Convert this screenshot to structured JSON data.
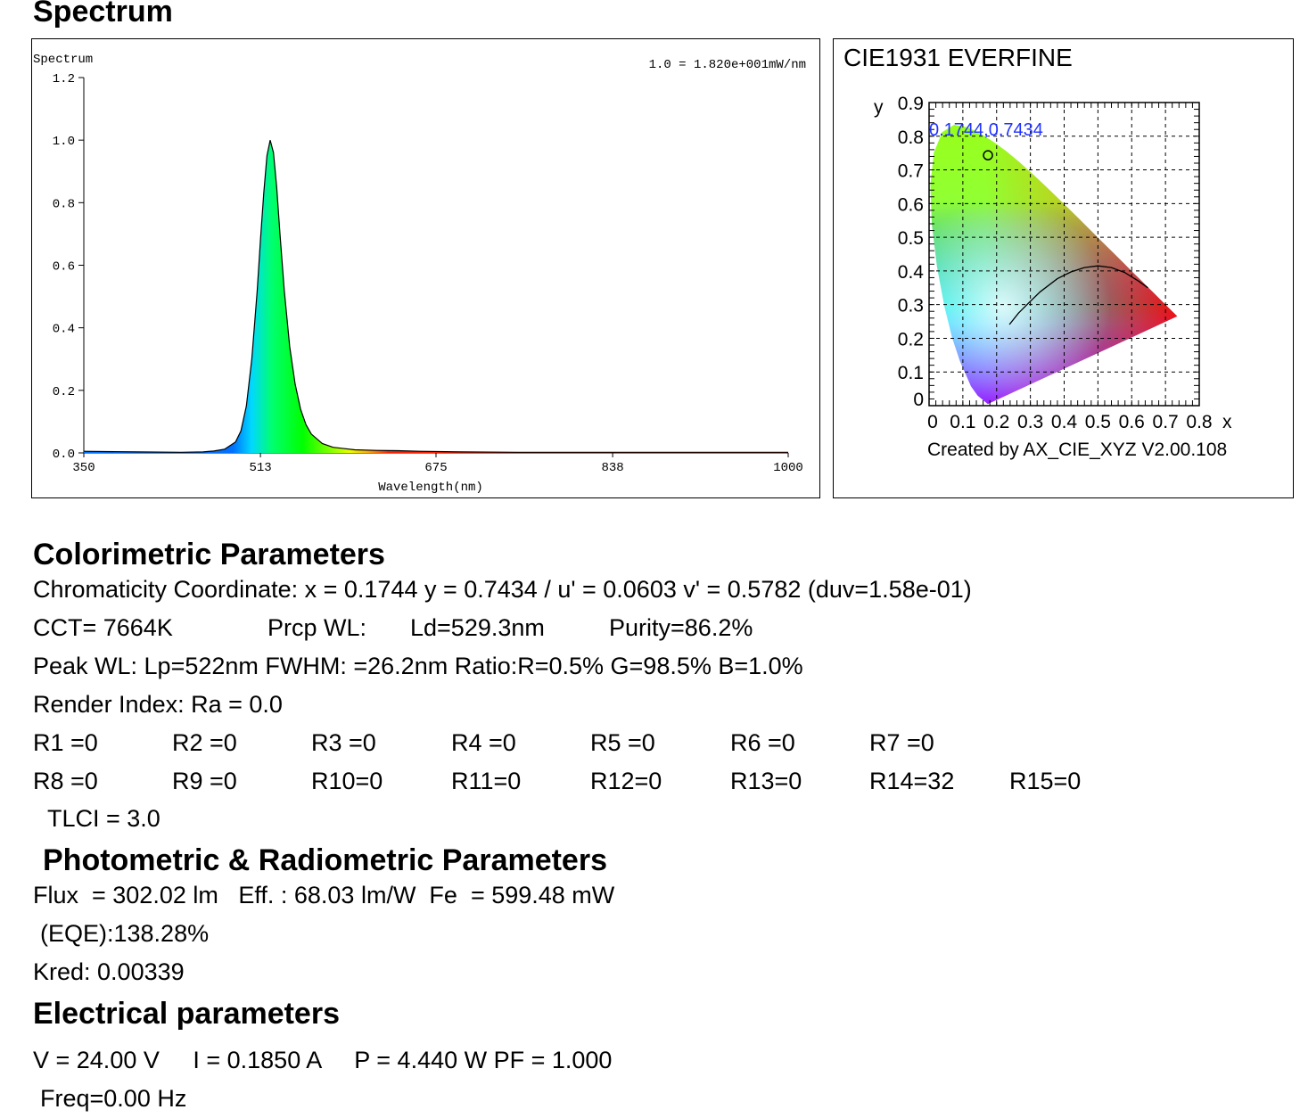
{
  "page_title": "Spectrum",
  "chart_data": [
    {
      "type": "line",
      "chart_label": "Spectrum",
      "scale_note": "1.0 = 1.820e+001mW/nm",
      "xlabel": "Wavelength(nm)",
      "ylabel": "",
      "x_ticks": [
        "350",
        "513",
        "675",
        "838",
        "1000"
      ],
      "y_ticks": [
        "0.0",
        "0.2",
        "0.4",
        "0.6",
        "0.8",
        "1.0",
        "1.2"
      ],
      "xlim": [
        350,
        1000
      ],
      "ylim": [
        0,
        1.2
      ],
      "x": [
        350,
        400,
        440,
        460,
        470,
        480,
        490,
        495,
        500,
        505,
        510,
        513,
        516,
        519,
        522,
        525,
        528,
        531,
        535,
        540,
        545,
        550,
        555,
        560,
        570,
        580,
        600,
        620,
        640,
        660,
        700,
        750,
        800,
        900,
        1000
      ],
      "series": [
        {
          "values": [
            0.005,
            0.003,
            0.002,
            0.003,
            0.006,
            0.012,
            0.035,
            0.07,
            0.15,
            0.3,
            0.52,
            0.68,
            0.83,
            0.95,
            1.0,
            0.96,
            0.85,
            0.7,
            0.52,
            0.34,
            0.22,
            0.14,
            0.09,
            0.06,
            0.03,
            0.018,
            0.01,
            0.008,
            0.007,
            0.005,
            0.003,
            0.002,
            0.002,
            0.002,
            0.002
          ]
        }
      ],
      "grid": false,
      "legend": "none"
    },
    {
      "type": "scatter",
      "chart_label": "CIE1931  EVERFINE",
      "x_axis_label": "x",
      "y_axis_label": "y",
      "x_ticks": [
        "0",
        "0.1",
        "0.2",
        "0.3",
        "0.4",
        "0.5",
        "0.6",
        "0.7",
        "0.8"
      ],
      "y_ticks": [
        "0",
        "0.1",
        "0.2",
        "0.3",
        "0.4",
        "0.5",
        "0.6",
        "0.7",
        "0.8",
        "0.9"
      ],
      "xlim": [
        0,
        0.8
      ],
      "ylim": [
        0,
        0.9
      ],
      "point": {
        "x": 0.1744,
        "y": 0.7434,
        "label": "0.1744,0.7434"
      },
      "grid": true,
      "footer": "Created by AX_CIE_XYZ V2.00.108"
    }
  ],
  "colorimetric": {
    "heading": "Colorimetric Parameters",
    "chromaticity": "Chromaticity Coordinate: x = 0.1744 y = 0.7434 / u' = 0.0603 v' = 0.5782 (duv=1.58e-01)",
    "cct": "CCT=  7664K",
    "prcp_wl": "Prcp WL:",
    "ld": "Ld=529.3nm",
    "purity": "Purity=86.2%",
    "peak_wl": "Peak WL:  Lp=522nm  FWHM:   =26.2nm  Ratio:R=0.5% G=98.5% B=1.0%",
    "render_index": "Render Index: Ra = 0.0",
    "r_row1": [
      "R1 =0",
      "R2 =0",
      "R3 =0",
      "R4 =0",
      "R5 =0",
      "R6 =0",
      "R7 =0"
    ],
    "r_row2": [
      "R8 =0",
      "R9 =0",
      "R10=0",
      "R11=0",
      "R12=0",
      "R13=0",
      "R14=32",
      "R15=0"
    ],
    "tlci": "TLCI = 3.0"
  },
  "photometric": {
    "heading": "Photometric & Radiometric Parameters",
    "flux_line": "Flux  = 302.02 lm   Eff. : 68.03 lm/W  Fe  = 599.48 mW",
    "eqe": "(EQE):138.28%",
    "kred": "Kred: 0.00339"
  },
  "electrical": {
    "heading": "Electrical parameters",
    "vip_line": "V = 24.00 V     I = 0.1850 A     P = 4.440 W PF = 1.000",
    "freq": "Freq=0.00 Hz"
  }
}
